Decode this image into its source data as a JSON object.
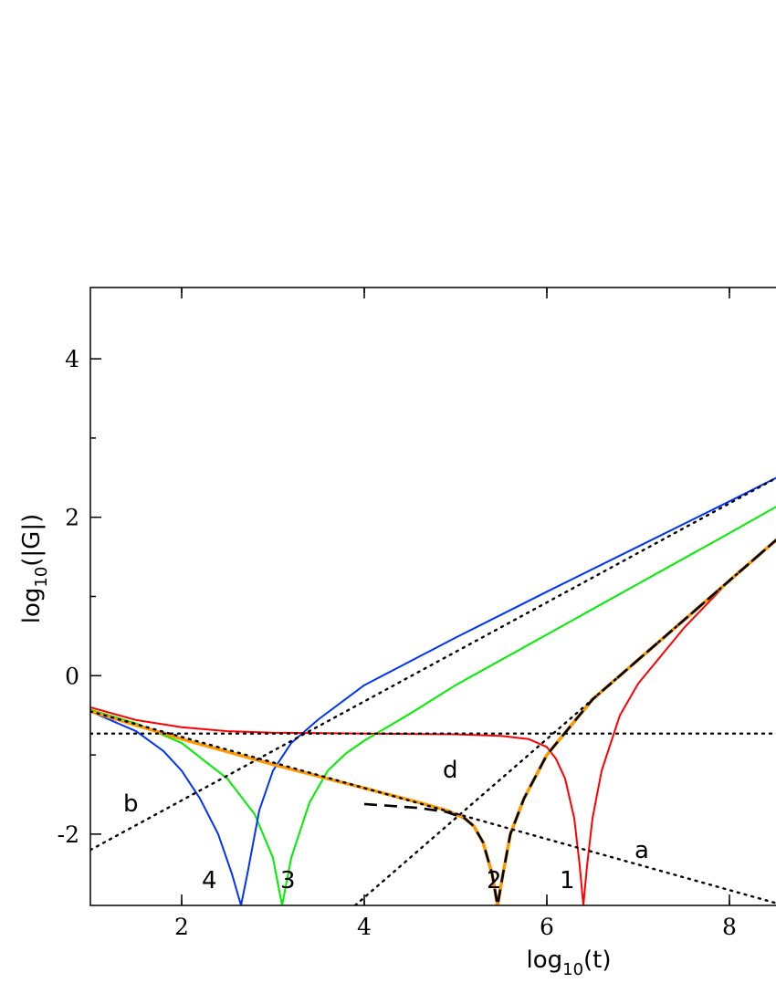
{
  "chart_data": {
    "type": "line",
    "xlabel": "log10(t)",
    "ylabel": "log10(|G|)",
    "xlim": [
      1,
      9
    ],
    "ylim": [
      -2.9,
      4.9
    ],
    "log_scale": false,
    "grid": false,
    "legend": "none",
    "x_ticks": [
      2,
      4,
      6,
      8
    ],
    "y_ticks": [
      -2,
      0,
      2,
      4
    ],
    "x_tick_labels": [
      "2",
      "4",
      "6",
      "8"
    ],
    "y_tick_labels": [
      "-2",
      "0",
      "2",
      "4"
    ],
    "curve_labels": [
      "1",
      "2",
      "3",
      "4"
    ],
    "asymptote_labels": [
      "a",
      "b",
      "d"
    ],
    "series": [
      {
        "color": "#ff0000",
        "style": "solid",
        "points": [
          [
            1.0,
            -0.4
          ],
          [
            1.5,
            -0.56
          ],
          [
            2.0,
            -0.65
          ],
          [
            2.5,
            -0.7
          ],
          [
            3.0,
            -0.72
          ],
          [
            4.0,
            -0.73
          ],
          [
            5.0,
            -0.74
          ],
          [
            5.5,
            -0.76
          ],
          [
            5.8,
            -0.8
          ],
          [
            6.0,
            -0.9
          ],
          [
            6.1,
            -1.05
          ],
          [
            6.2,
            -1.3
          ],
          [
            6.3,
            -1.8
          ],
          [
            6.36,
            -2.4
          ],
          [
            6.4,
            -2.9
          ],
          [
            6.44,
            -2.4
          ],
          [
            6.5,
            -1.8
          ],
          [
            6.6,
            -1.2
          ],
          [
            6.8,
            -0.5
          ],
          [
            7.0,
            -0.1
          ],
          [
            7.5,
            0.6
          ],
          [
            8.0,
            1.2
          ],
          [
            8.5,
            1.7
          ],
          [
            9.0,
            2.2
          ]
        ]
      },
      {
        "color": "#00ee00",
        "style": "solid",
        "points": [
          [
            1.0,
            -0.43
          ],
          [
            1.5,
            -0.6
          ],
          [
            2.0,
            -0.85
          ],
          [
            2.5,
            -1.3
          ],
          [
            2.8,
            -1.75
          ],
          [
            3.0,
            -2.3
          ],
          [
            3.1,
            -2.9
          ],
          [
            3.2,
            -2.3
          ],
          [
            3.4,
            -1.6
          ],
          [
            3.6,
            -1.2
          ],
          [
            3.8,
            -0.98
          ],
          [
            4.0,
            -0.82
          ],
          [
            4.5,
            -0.48
          ],
          [
            5.0,
            -0.12
          ],
          [
            6.0,
            0.52
          ],
          [
            7.0,
            1.16
          ],
          [
            8.0,
            1.8
          ],
          [
            9.0,
            2.45
          ]
        ]
      },
      {
        "color": "#0033ff",
        "style": "solid",
        "points": [
          [
            1.0,
            -0.45
          ],
          [
            1.5,
            -0.7
          ],
          [
            1.8,
            -0.95
          ],
          [
            2.0,
            -1.2
          ],
          [
            2.2,
            -1.55
          ],
          [
            2.4,
            -2.0
          ],
          [
            2.55,
            -2.5
          ],
          [
            2.65,
            -2.9
          ],
          [
            2.72,
            -2.5
          ],
          [
            2.85,
            -1.7
          ],
          [
            3.0,
            -1.2
          ],
          [
            3.2,
            -0.85
          ],
          [
            3.5,
            -0.55
          ],
          [
            4.0,
            -0.12
          ],
          [
            5.0,
            0.48
          ],
          [
            6.0,
            1.06
          ],
          [
            7.0,
            1.63
          ],
          [
            8.0,
            2.2
          ],
          [
            9.0,
            2.78
          ]
        ]
      },
      {
        "color": "#ff9900",
        "style": "solid",
        "points": [
          [
            1.0,
            -0.45
          ],
          [
            2.0,
            -0.8
          ],
          [
            3.0,
            -1.12
          ],
          [
            4.0,
            -1.42
          ],
          [
            4.6,
            -1.6
          ],
          [
            4.9,
            -1.7
          ],
          [
            5.1,
            -1.8
          ],
          [
            5.2,
            -1.9
          ],
          [
            5.3,
            -2.1
          ],
          [
            5.4,
            -2.5
          ],
          [
            5.46,
            -2.9
          ],
          [
            5.52,
            -2.5
          ],
          [
            5.6,
            -2.0
          ],
          [
            5.75,
            -1.55
          ],
          [
            6.0,
            -1.0
          ],
          [
            6.5,
            -0.3
          ],
          [
            7.0,
            0.2
          ],
          [
            8.0,
            1.2
          ],
          [
            9.0,
            2.2
          ]
        ]
      },
      {
        "color": "#000000",
        "style": "dashed",
        "points": [
          [
            4.0,
            -1.62
          ],
          [
            4.6,
            -1.67
          ],
          [
            4.9,
            -1.72
          ],
          [
            5.1,
            -1.8
          ],
          [
            5.2,
            -1.9
          ],
          [
            5.3,
            -2.1
          ],
          [
            5.4,
            -2.5
          ],
          [
            5.46,
            -2.9
          ],
          [
            5.52,
            -2.5
          ],
          [
            5.6,
            -2.0
          ],
          [
            5.75,
            -1.55
          ],
          [
            6.0,
            -1.0
          ],
          [
            6.5,
            -0.3
          ],
          [
            7.0,
            0.2
          ],
          [
            8.0,
            1.2
          ],
          [
            9.0,
            2.2
          ]
        ]
      },
      {
        "color": "#000000",
        "style": "dotted",
        "points": [
          [
            1.0,
            -0.73
          ],
          [
            9.0,
            -0.73
          ]
        ]
      },
      {
        "color": "#000000",
        "style": "dotted",
        "points": [
          [
            1.0,
            -0.45
          ],
          [
            8.6,
            -2.9
          ]
        ]
      },
      {
        "color": "#000000",
        "style": "dotted",
        "points": [
          [
            1.0,
            -2.2
          ],
          [
            9.0,
            2.8
          ]
        ]
      },
      {
        "color": "#000000",
        "style": "dotted",
        "points": [
          [
            3.9,
            -2.9
          ],
          [
            9.0,
            2.2
          ]
        ]
      }
    ]
  }
}
